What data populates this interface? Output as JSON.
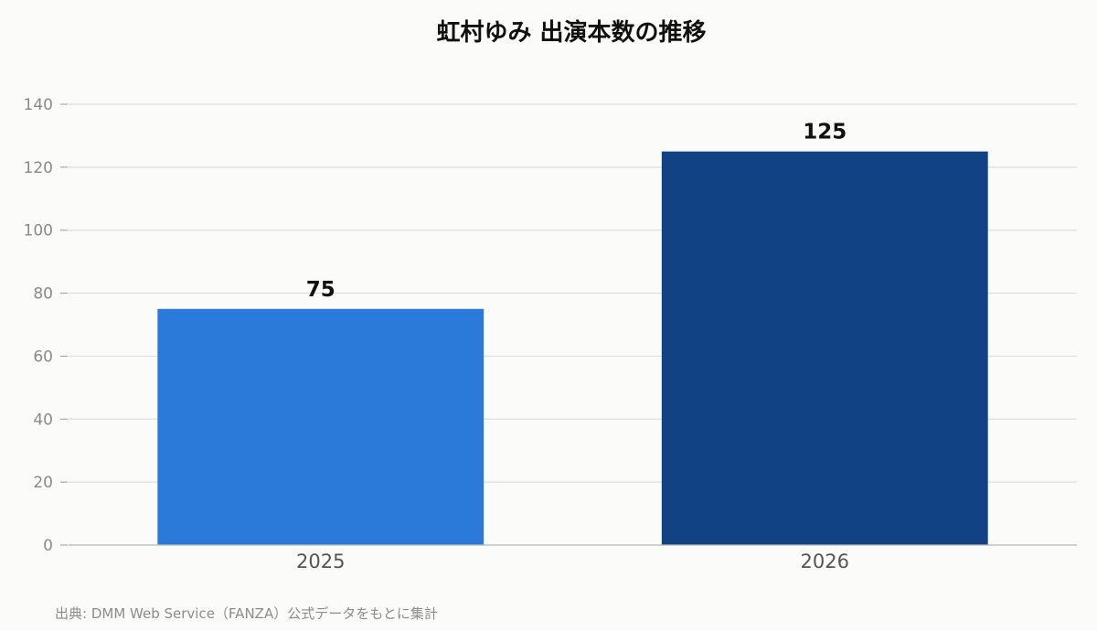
{
  "chart_data": {
    "type": "bar",
    "title": "虹村ゆみ 出演本数の推移",
    "categories": [
      "2025",
      "2026"
    ],
    "values": [
      75,
      125
    ],
    "data_labels": [
      "75",
      "125"
    ],
    "colors": [
      "#2b79d8",
      "#114284"
    ],
    "ylim": [
      0,
      140
    ],
    "yticks": [
      0,
      20,
      40,
      60,
      80,
      100,
      120,
      140
    ],
    "grid": true,
    "xlabel": "",
    "ylabel": ""
  },
  "footer": {
    "source": "出典: DMM Web Service（FANZA）公式データをもとに集計"
  }
}
